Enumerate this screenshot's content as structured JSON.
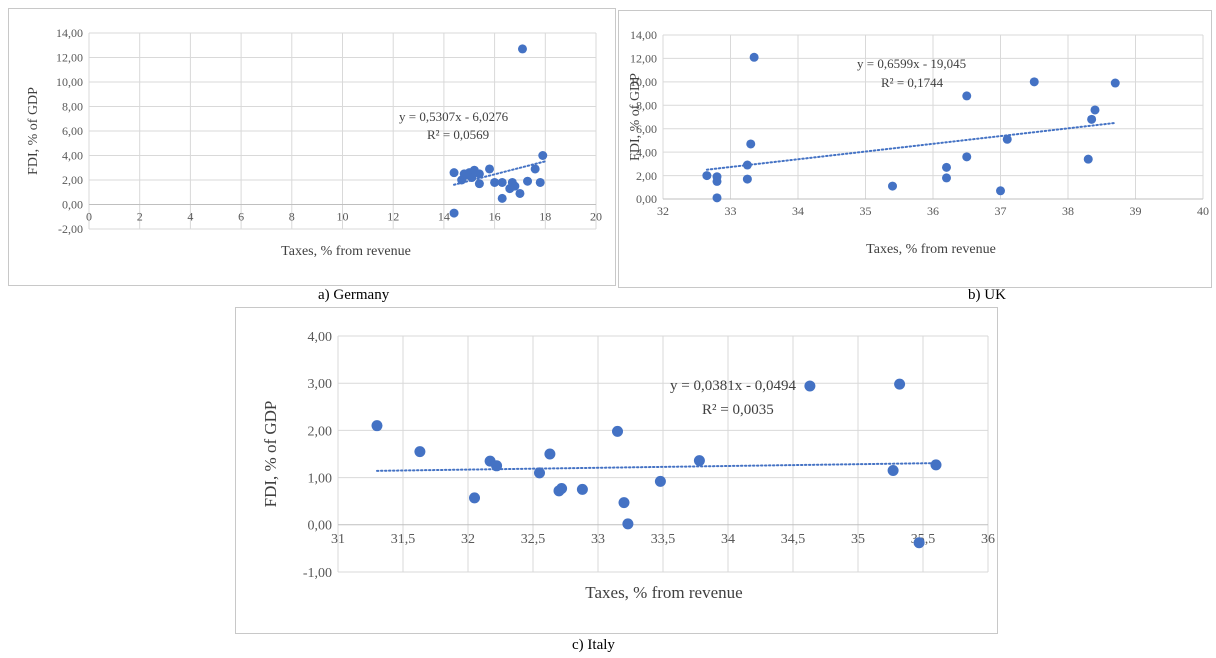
{
  "captions": {
    "a": "a) Germany",
    "b": "b) UK",
    "c": "c) Italy"
  },
  "theme": {
    "point_color": "#4472c4",
    "trend_color": "#4472c4",
    "grid_color": "#d9d9d9"
  },
  "chart_data": [
    {
      "id": "germany",
      "type": "scatter",
      "xlabel": "Taxes, % from revenue",
      "ylabel": "FDI, % of GDP",
      "xlim": [
        0,
        20
      ],
      "ylim": [
        -2,
        14
      ],
      "xticks": [
        0,
        2,
        4,
        6,
        8,
        10,
        12,
        14,
        16,
        18,
        20
      ],
      "xtick_labels": [
        "0",
        "2",
        "4",
        "6",
        "8",
        "10",
        "12",
        "14",
        "16",
        "18",
        "20"
      ],
      "yticks": [
        -2,
        0,
        2,
        4,
        6,
        8,
        10,
        12,
        14
      ],
      "ytick_labels": [
        "-2,00",
        "0,00",
        "2,00",
        "4,00",
        "6,00",
        "8,00",
        "10,00",
        "12,00",
        "14,00"
      ],
      "grid": true,
      "trendline": {
        "slope": 0.5307,
        "intercept": -6.0276,
        "x_range": [
          14.4,
          18.0
        ]
      },
      "equation": "y = 0,5307x - 6,0276",
      "r2": "R² = 0,0569",
      "points": [
        [
          14.4,
          2.6
        ],
        [
          14.4,
          -0.7
        ],
        [
          14.7,
          2.0
        ],
        [
          14.8,
          2.5
        ],
        [
          14.9,
          2.4
        ],
        [
          15.0,
          2.6
        ],
        [
          15.1,
          2.2
        ],
        [
          15.2,
          2.8
        ],
        [
          15.4,
          2.5
        ],
        [
          15.4,
          1.7
        ],
        [
          15.8,
          2.9
        ],
        [
          16.0,
          1.8
        ],
        [
          16.3,
          1.8
        ],
        [
          16.3,
          0.5
        ],
        [
          16.6,
          1.3
        ],
        [
          16.7,
          1.8
        ],
        [
          16.8,
          1.5
        ],
        [
          17.0,
          0.9
        ],
        [
          17.1,
          12.7
        ],
        [
          17.3,
          1.9
        ],
        [
          17.6,
          2.9
        ],
        [
          17.8,
          1.8
        ],
        [
          17.9,
          4.0
        ]
      ]
    },
    {
      "id": "uk",
      "type": "scatter",
      "xlabel": "Taxes, % from revenue",
      "ylabel": "FDI, % of GDP",
      "xlim": [
        32,
        40
      ],
      "ylim": [
        0,
        14
      ],
      "xticks": [
        32,
        33,
        34,
        35,
        36,
        37,
        38,
        39,
        40
      ],
      "xtick_labels": [
        "32",
        "33",
        "34",
        "35",
        "36",
        "37",
        "38",
        "39",
        "40"
      ],
      "yticks": [
        0,
        2,
        4,
        6,
        8,
        10,
        12,
        14
      ],
      "ytick_labels": [
        "0,00",
        "2,00",
        "4,00",
        "6,00",
        "8,00",
        "10,00",
        "12,00",
        "14,00"
      ],
      "grid": true,
      "trendline": {
        "slope": 0.6599,
        "intercept": -19.045,
        "x_range": [
          32.65,
          38.7
        ]
      },
      "equation": "y = 0,6599x - 19,045",
      "r2": "R² = 0,1744",
      "points": [
        [
          32.65,
          2.0
        ],
        [
          32.8,
          1.9
        ],
        [
          32.8,
          1.5
        ],
        [
          32.8,
          0.1
        ],
        [
          33.25,
          2.9
        ],
        [
          33.25,
          1.7
        ],
        [
          33.3,
          4.7
        ],
        [
          33.35,
          12.1
        ],
        [
          35.4,
          1.1
        ],
        [
          36.2,
          2.7
        ],
        [
          36.2,
          1.8
        ],
        [
          36.5,
          3.6
        ],
        [
          36.5,
          8.8
        ],
        [
          37.0,
          0.7
        ],
        [
          37.1,
          5.1
        ],
        [
          37.5,
          10.0
        ],
        [
          38.3,
          3.4
        ],
        [
          38.35,
          6.8
        ],
        [
          38.4,
          7.6
        ],
        [
          38.7,
          9.9
        ]
      ]
    },
    {
      "id": "italy",
      "type": "scatter",
      "xlabel": "Taxes, % from revenue",
      "ylabel": "FDI, % of GDP",
      "xlim": [
        31,
        36
      ],
      "ylim": [
        -1,
        4
      ],
      "xticks": [
        31,
        31.5,
        32,
        32.5,
        33,
        33.5,
        34,
        34.5,
        35,
        35.5,
        36
      ],
      "xtick_labels": [
        "31",
        "31,5",
        "32",
        "32,5",
        "33",
        "33,5",
        "34",
        "34,5",
        "35",
        "35,5",
        "36"
      ],
      "yticks": [
        -1,
        0,
        1,
        2,
        3,
        4
      ],
      "ytick_labels": [
        "-1,00",
        "0,00",
        "1,00",
        "2,00",
        "3,00",
        "4,00"
      ],
      "grid": true,
      "trendline": {
        "slope": 0.0381,
        "intercept": -0.0494,
        "x_range": [
          31.3,
          35.6
        ]
      },
      "equation": "y = 0,0381x - 0,0494",
      "r2": "R² = 0,0035",
      "points": [
        [
          31.3,
          2.1
        ],
        [
          31.63,
          1.55
        ],
        [
          32.05,
          0.57
        ],
        [
          32.17,
          1.35
        ],
        [
          32.22,
          1.25
        ],
        [
          32.55,
          1.1
        ],
        [
          32.63,
          1.5
        ],
        [
          32.7,
          0.72
        ],
        [
          32.72,
          0.77
        ],
        [
          32.88,
          0.75
        ],
        [
          33.15,
          1.98
        ],
        [
          33.2,
          0.47
        ],
        [
          33.23,
          0.02
        ],
        [
          33.48,
          0.92
        ],
        [
          33.78,
          1.36
        ],
        [
          34.63,
          2.94
        ],
        [
          35.27,
          1.15
        ],
        [
          35.32,
          2.98
        ],
        [
          35.47,
          -0.38
        ],
        [
          35.6,
          1.27
        ]
      ]
    }
  ]
}
